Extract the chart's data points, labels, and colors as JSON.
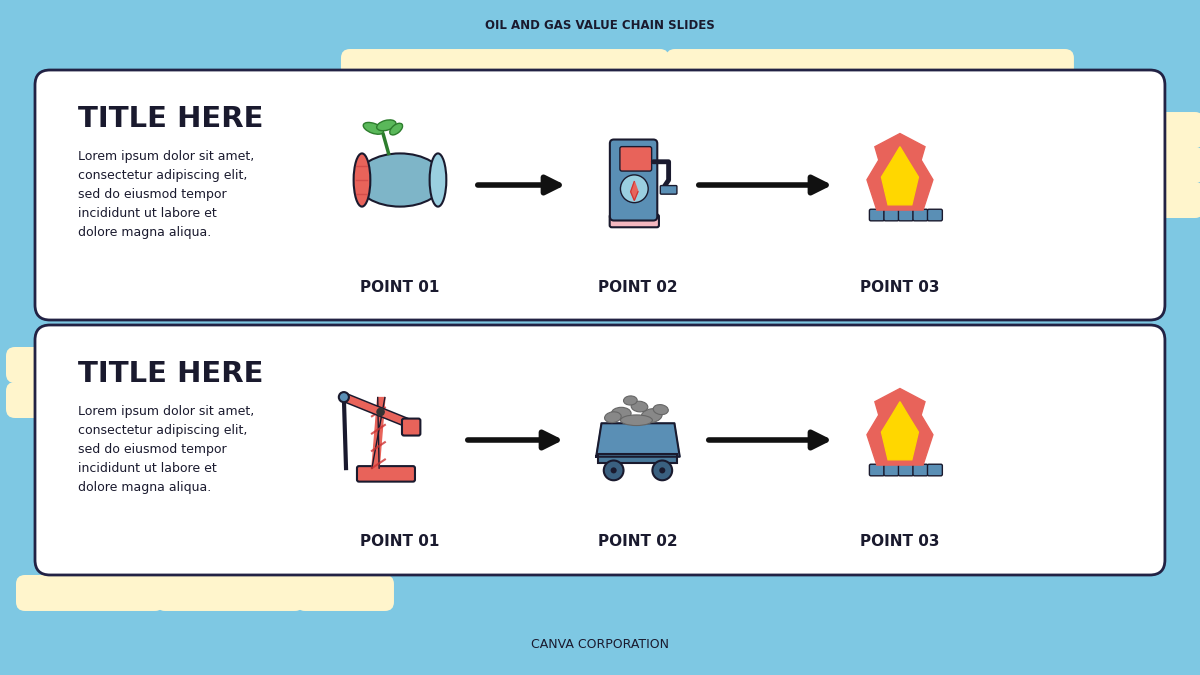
{
  "bg_color": "#7EC8E3",
  "card_bg": "#FFFFFF",
  "card_border": "#222244",
  "title_text": "OIL AND GAS VALUE CHAIN SLIDES",
  "footer_text": "CANVA CORPORATION",
  "title_color": "#1a1a2e",
  "card_title": "TITLE HERE",
  "card_body": "Lorem ipsum dolor sit amet,\nconsectetur adipiscing elit,\nsed do eiusmod tempor\nincididunt ut labore et\ndolore magna aliqua.",
  "point_labels": [
    "POINT 01",
    "POINT 02",
    "POINT 03"
  ],
  "arrow_color": "#111111",
  "deco_color": "#FFF5CC",
  "log_body_color": "#7EB5C8",
  "log_end_color": "#E8635A",
  "leaf_color": "#5AB85A",
  "pump_body_color": "#5A8FB5",
  "pump_screen_color": "#E8635A",
  "pump_base_color": "#F4B8C0",
  "flame_outer_color": "#E8635A",
  "flame_inner_color": "#FFD700",
  "burner_color": "#5A8FB5",
  "cart_body_color": "#5A8FB5",
  "cart_dark_color": "#4A7A9B",
  "coal_color": "#888888",
  "oil_pump_color": "#E8635A",
  "oil_pump_accent": "#5A8FB5"
}
